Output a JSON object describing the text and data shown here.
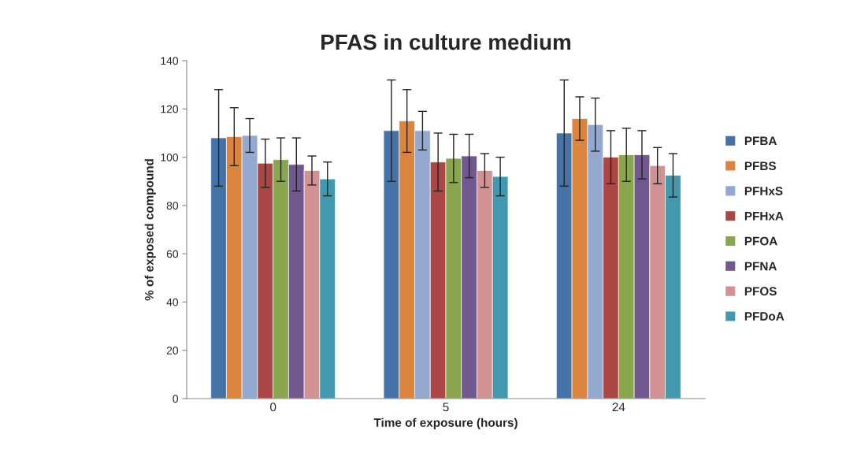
{
  "chart_data": {
    "type": "bar",
    "title": "PFAS in culture medium",
    "xlabel": "Time of exposure (hours)",
    "ylabel": "% of exposed compound",
    "categories": [
      "0",
      "5",
      "24"
    ],
    "series": [
      {
        "name": "PFBA",
        "color": "#4572a7",
        "values": [
          108,
          111,
          110
        ],
        "errors": [
          20,
          21,
          22
        ]
      },
      {
        "name": "PFBS",
        "color": "#db843d",
        "values": [
          108.5,
          115,
          116
        ],
        "errors": [
          12,
          13,
          9
        ]
      },
      {
        "name": "PFHxS",
        "color": "#93a9cf",
        "values": [
          109,
          111,
          113.5
        ],
        "errors": [
          7,
          8,
          11
        ]
      },
      {
        "name": "PFHxA",
        "color": "#aa4643",
        "values": [
          97.5,
          98,
          100
        ],
        "errors": [
          10,
          12,
          11
        ]
      },
      {
        "name": "PFOA",
        "color": "#89a54e",
        "values": [
          99,
          99.5,
          101
        ],
        "errors": [
          9,
          10,
          11
        ]
      },
      {
        "name": "PFNA",
        "color": "#71588f",
        "values": [
          97,
          100.5,
          101
        ],
        "errors": [
          11,
          9,
          10
        ]
      },
      {
        "name": "PFOS",
        "color": "#d09392",
        "values": [
          94.5,
          94.5,
          96.5
        ],
        "errors": [
          6,
          7,
          7.5
        ]
      },
      {
        "name": "PFDoA",
        "color": "#4198af",
        "values": [
          91,
          92,
          92.5
        ],
        "errors": [
          7,
          8,
          9
        ]
      }
    ],
    "ylim": [
      0,
      140
    ],
    "yticks": [
      0,
      20,
      40,
      60,
      80,
      100,
      120,
      140
    ],
    "grid": false,
    "legend": "right"
  }
}
